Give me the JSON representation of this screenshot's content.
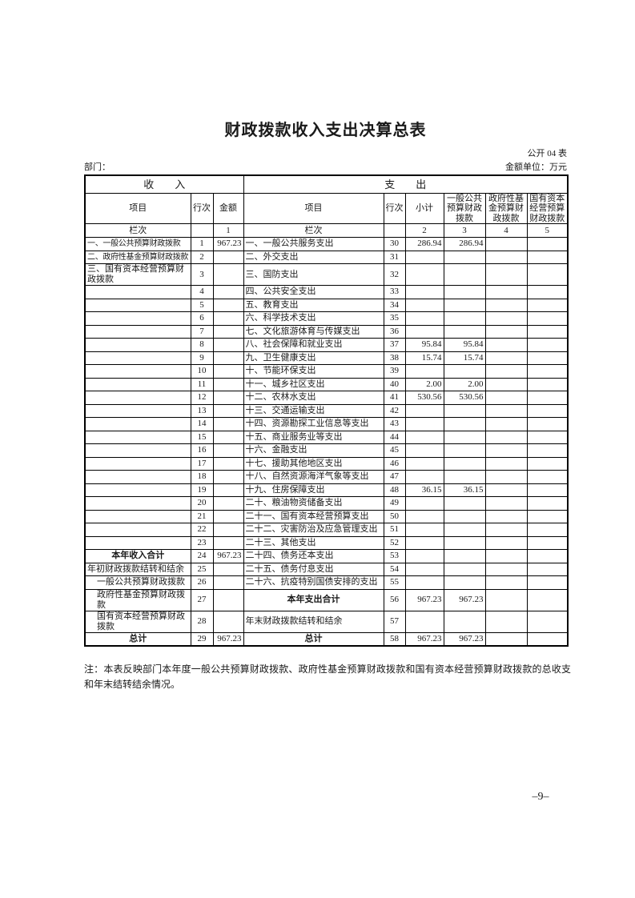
{
  "page": {
    "title": "财政拨款收入支出决算总表",
    "doc_code": "公开 04 表",
    "department_label": "部门：",
    "unit_label": "金额单位：万元",
    "note": "注：本表反映部门本年度一般公共预算财政拨款、政府性基金预算财政拨款和国有资本经营预算财政拨款的总收支和年末结转结余情况。",
    "page_number": "–9–"
  },
  "table": {
    "group_headers": {
      "income": "收　　入",
      "expense": "支　　出"
    },
    "column_headers": {
      "income_item": "项目",
      "income_line": "行次",
      "income_amount": "金额",
      "expense_item": "项目",
      "expense_line": "行次",
      "expense_subtotal": "小计",
      "general_budget": "一般公共预算财政拨款",
      "gov_fund_budget": "政府性基金预算财政拨款",
      "state_capital_budget": "国有资本经营预算财政拨款"
    },
    "column_index_row": {
      "income_label": "栏次",
      "income_line": "",
      "income_amount": "1",
      "expense_label": "栏次",
      "expense_line": "",
      "subtotal": "2",
      "general": "3",
      "gov_fund": "4",
      "state_capital": "5"
    },
    "rows": [
      {
        "in_item": "一、一般公共预算财政拨款",
        "in_line": "1",
        "in_amt": "967.23",
        "ex_item": "一、一般公共服务支出",
        "ex_line": "30",
        "sub": "286.94",
        "gen": "286.94",
        "gov": "",
        "cap": "",
        "in_style": "shrink",
        "ex_style": ""
      },
      {
        "in_item": "二、政府性基金预算财政拨款",
        "in_line": "2",
        "in_amt": "",
        "ex_item": "二、外交支出",
        "ex_line": "31",
        "sub": "",
        "gen": "",
        "gov": "",
        "cap": "",
        "in_style": "shrink",
        "ex_style": ""
      },
      {
        "in_item": "三、国有资本经营预算财政拨款",
        "in_line": "3",
        "in_amt": "",
        "ex_item": "三、国防支出",
        "ex_line": "32",
        "sub": "",
        "gen": "",
        "gov": "",
        "cap": "",
        "in_style": "",
        "ex_style": ""
      },
      {
        "in_item": "",
        "in_line": "4",
        "in_amt": "",
        "ex_item": "四、公共安全支出",
        "ex_line": "33",
        "sub": "",
        "gen": "",
        "gov": "",
        "cap": "",
        "in_style": "",
        "ex_style": ""
      },
      {
        "in_item": "",
        "in_line": "5",
        "in_amt": "",
        "ex_item": "五、教育支出",
        "ex_line": "34",
        "sub": "",
        "gen": "",
        "gov": "",
        "cap": "",
        "in_style": "",
        "ex_style": ""
      },
      {
        "in_item": "",
        "in_line": "6",
        "in_amt": "",
        "ex_item": "六、科学技术支出",
        "ex_line": "35",
        "sub": "",
        "gen": "",
        "gov": "",
        "cap": "",
        "in_style": "",
        "ex_style": ""
      },
      {
        "in_item": "",
        "in_line": "7",
        "in_amt": "",
        "ex_item": "七、文化旅游体育与传媒支出",
        "ex_line": "36",
        "sub": "",
        "gen": "",
        "gov": "",
        "cap": "",
        "in_style": "",
        "ex_style": ""
      },
      {
        "in_item": "",
        "in_line": "8",
        "in_amt": "",
        "ex_item": "八、社会保障和就业支出",
        "ex_line": "37",
        "sub": "95.84",
        "gen": "95.84",
        "gov": "",
        "cap": "",
        "in_style": "",
        "ex_style": ""
      },
      {
        "in_item": "",
        "in_line": "9",
        "in_amt": "",
        "ex_item": "九、卫生健康支出",
        "ex_line": "38",
        "sub": "15.74",
        "gen": "15.74",
        "gov": "",
        "cap": "",
        "in_style": "",
        "ex_style": ""
      },
      {
        "in_item": "",
        "in_line": "10",
        "in_amt": "",
        "ex_item": "十、节能环保支出",
        "ex_line": "39",
        "sub": "",
        "gen": "",
        "gov": "",
        "cap": "",
        "in_style": "",
        "ex_style": ""
      },
      {
        "in_item": "",
        "in_line": "11",
        "in_amt": "",
        "ex_item": "十一、城乡社区支出",
        "ex_line": "40",
        "sub": "2.00",
        "gen": "2.00",
        "gov": "",
        "cap": "",
        "in_style": "",
        "ex_style": ""
      },
      {
        "in_item": "",
        "in_line": "12",
        "in_amt": "",
        "ex_item": "十二、农林水支出",
        "ex_line": "41",
        "sub": "530.56",
        "gen": "530.56",
        "gov": "",
        "cap": "",
        "in_style": "",
        "ex_style": ""
      },
      {
        "in_item": "",
        "in_line": "13",
        "in_amt": "",
        "ex_item": "十三、交通运输支出",
        "ex_line": "42",
        "sub": "",
        "gen": "",
        "gov": "",
        "cap": "",
        "in_style": "",
        "ex_style": ""
      },
      {
        "in_item": "",
        "in_line": "14",
        "in_amt": "",
        "ex_item": "十四、资源勘探工业信息等支出",
        "ex_line": "43",
        "sub": "",
        "gen": "",
        "gov": "",
        "cap": "",
        "in_style": "",
        "ex_style": ""
      },
      {
        "in_item": "",
        "in_line": "15",
        "in_amt": "",
        "ex_item": "十五、商业服务业等支出",
        "ex_line": "44",
        "sub": "",
        "gen": "",
        "gov": "",
        "cap": "",
        "in_style": "",
        "ex_style": ""
      },
      {
        "in_item": "",
        "in_line": "16",
        "in_amt": "",
        "ex_item": "十六、金融支出",
        "ex_line": "45",
        "sub": "",
        "gen": "",
        "gov": "",
        "cap": "",
        "in_style": "",
        "ex_style": ""
      },
      {
        "in_item": "",
        "in_line": "17",
        "in_amt": "",
        "ex_item": "十七、援助其他地区支出",
        "ex_line": "46",
        "sub": "",
        "gen": "",
        "gov": "",
        "cap": "",
        "in_style": "",
        "ex_style": ""
      },
      {
        "in_item": "",
        "in_line": "18",
        "in_amt": "",
        "ex_item": "十八、自然资源海洋气象等支出",
        "ex_line": "47",
        "sub": "",
        "gen": "",
        "gov": "",
        "cap": "",
        "in_style": "",
        "ex_style": ""
      },
      {
        "in_item": "",
        "in_line": "19",
        "in_amt": "",
        "ex_item": "十九、住房保障支出",
        "ex_line": "48",
        "sub": "36.15",
        "gen": "36.15",
        "gov": "",
        "cap": "",
        "in_style": "",
        "ex_style": ""
      },
      {
        "in_item": "",
        "in_line": "20",
        "in_amt": "",
        "ex_item": "二十、粮油物资储备支出",
        "ex_line": "49",
        "sub": "",
        "gen": "",
        "gov": "",
        "cap": "",
        "in_style": "",
        "ex_style": ""
      },
      {
        "in_item": "",
        "in_line": "21",
        "in_amt": "",
        "ex_item": "二十一、国有资本经营预算支出",
        "ex_line": "50",
        "sub": "",
        "gen": "",
        "gov": "",
        "cap": "",
        "in_style": "",
        "ex_style": ""
      },
      {
        "in_item": "",
        "in_line": "22",
        "in_amt": "",
        "ex_item": "二十二、灾害防治及应急管理支出",
        "ex_line": "51",
        "sub": "",
        "gen": "",
        "gov": "",
        "cap": "",
        "in_style": "",
        "ex_style": ""
      },
      {
        "in_item": "",
        "in_line": "23",
        "in_amt": "",
        "ex_item": "二十三、其他支出",
        "ex_line": "52",
        "sub": "",
        "gen": "",
        "gov": "",
        "cap": "",
        "in_style": "",
        "ex_style": ""
      },
      {
        "in_item": "本年收入合计",
        "in_line": "24",
        "in_amt": "967.23",
        "ex_item": "二十四、债务还本支出",
        "ex_line": "53",
        "sub": "",
        "gen": "",
        "gov": "",
        "cap": "",
        "in_style": "total",
        "ex_style": ""
      },
      {
        "in_item": "年初财政拨款结转和结余",
        "in_line": "25",
        "in_amt": "",
        "ex_item": "二十五、债务付息支出",
        "ex_line": "54",
        "sub": "",
        "gen": "",
        "gov": "",
        "cap": "",
        "in_style": "",
        "ex_style": ""
      },
      {
        "in_item": "一般公共预算财政拨款",
        "in_line": "26",
        "in_amt": "",
        "ex_item": "二十六、抗疫特别国债安排的支出",
        "ex_line": "55",
        "sub": "",
        "gen": "",
        "gov": "",
        "cap": "",
        "in_style": "indent",
        "ex_style": ""
      },
      {
        "in_item": "政府性基金预算财政拨款",
        "in_line": "27",
        "in_amt": "",
        "ex_item": "本年支出合计",
        "ex_line": "56",
        "sub": "967.23",
        "gen": "967.23",
        "gov": "",
        "cap": "",
        "in_style": "indent",
        "ex_style": "total"
      },
      {
        "in_item": "国有资本经营预算财政拨款",
        "in_line": "28",
        "in_amt": "",
        "ex_item": "年末财政拨款结转和结余",
        "ex_line": "57",
        "sub": "",
        "gen": "",
        "gov": "",
        "cap": "",
        "in_style": "indent",
        "ex_style": ""
      },
      {
        "in_item": "总计",
        "in_line": "29",
        "in_amt": "967.23",
        "ex_item": "总计",
        "ex_line": "58",
        "sub": "967.23",
        "gen": "967.23",
        "gov": "",
        "cap": "",
        "in_style": "total",
        "ex_style": "total"
      }
    ]
  }
}
